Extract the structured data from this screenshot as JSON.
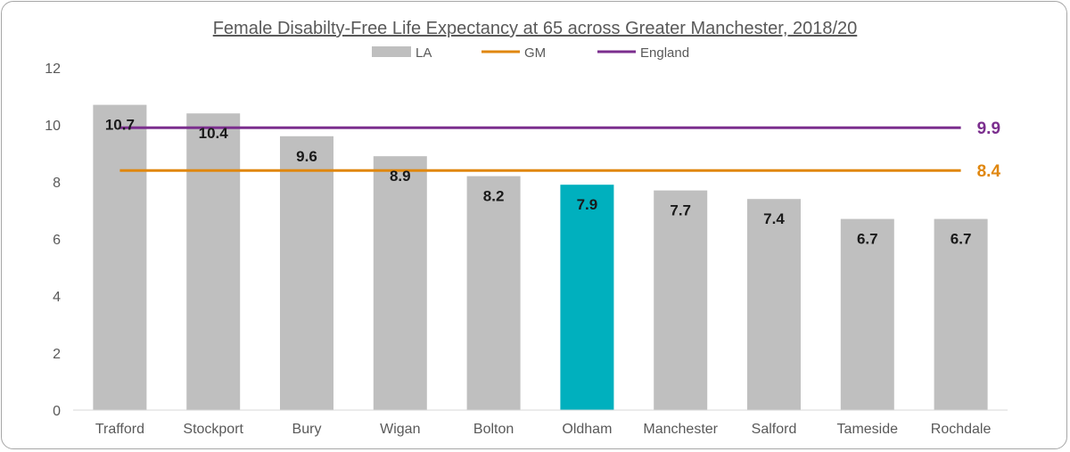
{
  "chart_data": {
    "type": "bar",
    "title": "Female Disabilty-Free Life Expectancy at 65 across Greater Manchester, 2018/20",
    "categories": [
      "Trafford",
      "Stockport",
      "Bury",
      "Wigan",
      "Bolton",
      "Oldham",
      "Manchester",
      "Salford",
      "Tameside",
      "Rochdale"
    ],
    "series": [
      {
        "name": "LA",
        "values": [
          10.7,
          10.4,
          9.6,
          8.9,
          8.2,
          7.9,
          7.7,
          7.4,
          6.7,
          6.7
        ],
        "color": "#bfbfbf",
        "highlight_color": "#00b0be",
        "highlight_category": "Oldham"
      }
    ],
    "reference_lines": [
      {
        "name": "GM",
        "value": 8.4,
        "label": "8.4",
        "color": "#e0870f"
      },
      {
        "name": "England",
        "value": 9.9,
        "label": "9.9",
        "color": "#7b2e8e"
      }
    ],
    "data_labels": [
      "10.7",
      "10.4",
      "9.6",
      "8.9",
      "8.2",
      "7.9",
      "7.7",
      "7.4",
      "6.7",
      "6.7"
    ],
    "yticks": [
      "0",
      "2",
      "4",
      "6",
      "8",
      "10",
      "12"
    ],
    "ylim": [
      0,
      12
    ],
    "grid": false,
    "legend_position": "top"
  }
}
